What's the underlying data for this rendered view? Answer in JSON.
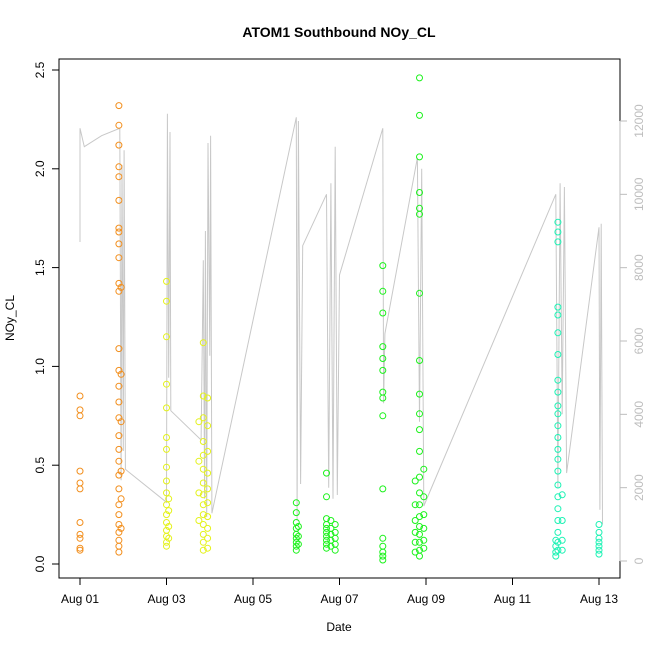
{
  "chart_data": {
    "type": "scatter",
    "title": "ATOM1 Southbound NOy_CL",
    "xlabel": "Date",
    "ylabel": "NOy_CL",
    "xlim": [
      "2016-08-01",
      "2016-08-13"
    ],
    "ylim": [
      0,
      2.5
    ],
    "y2lim": [
      0,
      12000
    ],
    "x_ticks": [
      "Aug 01",
      "Aug 03",
      "Aug 05",
      "Aug 07",
      "Aug 09",
      "Aug 11",
      "Aug 13"
    ],
    "y_ticks": [
      "0.0",
      "0.5",
      "1.0",
      "1.5",
      "2.0",
      "2.5"
    ],
    "y2_ticks": [
      "0",
      "2000",
      "4000",
      "6000",
      "8000",
      "10000",
      "12000"
    ],
    "grid": false,
    "series": [
      {
        "color": "#F28E1C",
        "marker": "open-circle",
        "points": [
          [
            0.0,
            0.85
          ],
          [
            0.0,
            0.78
          ],
          [
            0.0,
            0.75
          ],
          [
            0.0,
            0.47
          ],
          [
            0.0,
            0.41
          ],
          [
            0.0,
            0.38
          ],
          [
            0.0,
            0.21
          ],
          [
            0.0,
            0.15
          ],
          [
            0.0,
            0.13
          ],
          [
            0.0,
            0.08
          ],
          [
            0.0,
            0.07
          ],
          [
            0.9,
            2.32
          ],
          [
            0.9,
            2.22
          ],
          [
            0.9,
            2.12
          ],
          [
            0.9,
            2.01
          ],
          [
            0.9,
            1.96
          ],
          [
            0.9,
            1.84
          ],
          [
            0.9,
            1.7
          ],
          [
            0.9,
            1.68
          ],
          [
            0.9,
            1.62
          ],
          [
            0.9,
            1.55
          ],
          [
            0.9,
            1.42
          ],
          [
            0.9,
            1.38
          ],
          [
            0.9,
            1.09
          ],
          [
            0.9,
            0.98
          ],
          [
            0.9,
            0.9
          ],
          [
            0.9,
            0.82
          ],
          [
            0.9,
            0.74
          ],
          [
            0.9,
            0.65
          ],
          [
            0.9,
            0.58
          ],
          [
            0.9,
            0.52
          ],
          [
            0.9,
            0.45
          ],
          [
            0.9,
            0.38
          ],
          [
            0.9,
            0.3
          ],
          [
            0.9,
            0.25
          ],
          [
            0.9,
            0.2
          ],
          [
            0.9,
            0.16
          ],
          [
            0.9,
            0.12
          ],
          [
            0.9,
            0.09
          ],
          [
            0.9,
            0.06
          ],
          [
            0.95,
            1.4
          ],
          [
            0.95,
            0.96
          ],
          [
            0.95,
            0.72
          ],
          [
            0.95,
            0.47
          ],
          [
            0.95,
            0.33
          ],
          [
            0.95,
            0.18
          ]
        ]
      },
      {
        "color": "#E4F21C",
        "marker": "open-circle",
        "points": [
          [
            2.0,
            1.43
          ],
          [
            2.0,
            1.33
          ],
          [
            2.0,
            1.15
          ],
          [
            2.0,
            0.91
          ],
          [
            2.0,
            0.79
          ],
          [
            2.0,
            0.64
          ],
          [
            2.0,
            0.58
          ],
          [
            2.0,
            0.49
          ],
          [
            2.0,
            0.42
          ],
          [
            2.0,
            0.36
          ],
          [
            2.0,
            0.3
          ],
          [
            2.0,
            0.25
          ],
          [
            2.0,
            0.21
          ],
          [
            2.0,
            0.17
          ],
          [
            2.0,
            0.14
          ],
          [
            2.0,
            0.11
          ],
          [
            2.0,
            0.09
          ],
          [
            2.05,
            0.33
          ],
          [
            2.05,
            0.27
          ],
          [
            2.05,
            0.19
          ],
          [
            2.05,
            0.13
          ],
          [
            2.85,
            1.12
          ],
          [
            2.85,
            0.85
          ],
          [
            2.85,
            0.74
          ],
          [
            2.85,
            0.62
          ],
          [
            2.85,
            0.55
          ],
          [
            2.85,
            0.48
          ],
          [
            2.85,
            0.41
          ],
          [
            2.85,
            0.35
          ],
          [
            2.85,
            0.3
          ],
          [
            2.85,
            0.25
          ],
          [
            2.85,
            0.2
          ],
          [
            2.85,
            0.15
          ],
          [
            2.85,
            0.11
          ],
          [
            2.85,
            0.07
          ],
          [
            2.95,
            0.84
          ],
          [
            2.95,
            0.7
          ],
          [
            2.95,
            0.57
          ],
          [
            2.95,
            0.46
          ],
          [
            2.95,
            0.38
          ],
          [
            2.95,
            0.31
          ],
          [
            2.95,
            0.24
          ],
          [
            2.95,
            0.18
          ],
          [
            2.95,
            0.13
          ],
          [
            2.95,
            0.08
          ],
          [
            2.75,
            0.72
          ],
          [
            2.75,
            0.52
          ],
          [
            2.75,
            0.36
          ],
          [
            2.75,
            0.22
          ]
        ]
      },
      {
        "color": "#1CF21C",
        "marker": "open-circle",
        "points": [
          [
            5.0,
            0.31
          ],
          [
            5.0,
            0.26
          ],
          [
            5.0,
            0.21
          ],
          [
            5.0,
            0.18
          ],
          [
            5.0,
            0.15
          ],
          [
            5.0,
            0.13
          ],
          [
            5.0,
            0.11
          ],
          [
            5.0,
            0.09
          ],
          [
            5.0,
            0.07
          ],
          [
            5.05,
            0.19
          ],
          [
            5.05,
            0.14
          ],
          [
            5.05,
            0.1
          ],
          [
            5.7,
            0.46
          ],
          [
            5.7,
            0.34
          ],
          [
            5.7,
            0.23
          ],
          [
            5.7,
            0.2
          ],
          [
            5.7,
            0.18
          ],
          [
            5.7,
            0.16
          ],
          [
            5.7,
            0.14
          ],
          [
            5.7,
            0.12
          ],
          [
            5.7,
            0.1
          ],
          [
            5.7,
            0.08
          ],
          [
            5.8,
            0.22
          ],
          [
            5.8,
            0.18
          ],
          [
            5.8,
            0.15
          ],
          [
            5.8,
            0.12
          ],
          [
            5.8,
            0.09
          ],
          [
            5.9,
            0.2
          ],
          [
            5.9,
            0.16
          ],
          [
            5.9,
            0.13
          ],
          [
            5.9,
            0.1
          ],
          [
            5.9,
            0.07
          ],
          [
            7.0,
            1.51
          ],
          [
            7.0,
            1.38
          ],
          [
            7.0,
            1.27
          ],
          [
            7.0,
            1.1
          ],
          [
            7.0,
            1.04
          ],
          [
            7.0,
            0.98
          ],
          [
            7.0,
            0.87
          ],
          [
            7.0,
            0.84
          ],
          [
            7.0,
            0.75
          ],
          [
            7.0,
            0.38
          ],
          [
            7.0,
            0.13
          ],
          [
            7.0,
            0.09
          ],
          [
            7.0,
            0.06
          ],
          [
            7.0,
            0.04
          ],
          [
            7.0,
            0.02
          ],
          [
            7.85,
            2.46
          ],
          [
            7.85,
            2.27
          ],
          [
            7.85,
            2.06
          ],
          [
            7.85,
            1.88
          ],
          [
            7.85,
            1.8
          ],
          [
            7.85,
            1.77
          ],
          [
            7.85,
            1.37
          ],
          [
            7.85,
            1.03
          ],
          [
            7.85,
            0.86
          ],
          [
            7.85,
            0.76
          ],
          [
            7.85,
            0.68
          ],
          [
            7.85,
            0.57
          ],
          [
            7.85,
            0.44
          ],
          [
            7.85,
            0.36
          ],
          [
            7.85,
            0.3
          ],
          [
            7.85,
            0.24
          ],
          [
            7.85,
            0.19
          ],
          [
            7.85,
            0.15
          ],
          [
            7.85,
            0.11
          ],
          [
            7.85,
            0.07
          ],
          [
            7.85,
            0.04
          ],
          [
            7.75,
            0.42
          ],
          [
            7.75,
            0.3
          ],
          [
            7.75,
            0.22
          ],
          [
            7.75,
            0.16
          ],
          [
            7.75,
            0.11
          ],
          [
            7.75,
            0.06
          ],
          [
            7.95,
            0.48
          ],
          [
            7.95,
            0.34
          ],
          [
            7.95,
            0.25
          ],
          [
            7.95,
            0.18
          ],
          [
            7.95,
            0.12
          ],
          [
            7.95,
            0.08
          ]
        ]
      },
      {
        "color": "#1CF2B4",
        "marker": "open-circle",
        "points": [
          [
            11.05,
            1.73
          ],
          [
            11.05,
            1.68
          ],
          [
            11.05,
            1.63
          ],
          [
            11.05,
            1.3
          ],
          [
            11.05,
            1.26
          ],
          [
            11.05,
            1.17
          ],
          [
            11.05,
            1.06
          ],
          [
            11.05,
            0.93
          ],
          [
            11.05,
            0.87
          ],
          [
            11.05,
            0.8
          ],
          [
            11.05,
            0.76
          ],
          [
            11.05,
            0.7
          ],
          [
            11.05,
            0.64
          ],
          [
            11.05,
            0.58
          ],
          [
            11.05,
            0.53
          ],
          [
            11.05,
            0.47
          ],
          [
            11.05,
            0.4
          ],
          [
            11.05,
            0.34
          ],
          [
            11.05,
            0.28
          ],
          [
            11.05,
            0.22
          ],
          [
            11.05,
            0.16
          ],
          [
            11.05,
            0.11
          ],
          [
            11.05,
            0.07
          ],
          [
            11.0,
            0.12
          ],
          [
            11.0,
            0.09
          ],
          [
            11.0,
            0.06
          ],
          [
            11.0,
            0.04
          ],
          [
            11.15,
            0.35
          ],
          [
            11.15,
            0.22
          ],
          [
            11.15,
            0.12
          ],
          [
            11.15,
            0.07
          ],
          [
            12.0,
            0.2
          ],
          [
            12.0,
            0.16
          ],
          [
            12.0,
            0.13
          ],
          [
            12.0,
            0.11
          ],
          [
            12.0,
            0.09
          ],
          [
            12.0,
            0.07
          ],
          [
            12.0,
            0.05
          ]
        ]
      }
    ],
    "secondary_series": {
      "color": "#c8c8c8",
      "style": "line",
      "points": [
        [
          0.0,
          8700
        ],
        [
          0.0,
          11800
        ],
        [
          0.1,
          11300
        ],
        [
          0.5,
          11600
        ],
        [
          0.92,
          11800
        ],
        [
          0.95,
          2200
        ],
        [
          0.97,
          10800
        ],
        [
          1.0,
          3000
        ],
        [
          1.02,
          11200
        ],
        [
          1.05,
          2500
        ],
        [
          2.0,
          1600
        ],
        [
          2.02,
          12200
        ],
        [
          2.05,
          5000
        ],
        [
          2.08,
          11700
        ],
        [
          2.1,
          4100
        ],
        [
          2.8,
          3300
        ],
        [
          2.85,
          8200
        ],
        [
          2.88,
          1700
        ],
        [
          2.9,
          9000
        ],
        [
          2.93,
          1200
        ],
        [
          2.96,
          11400
        ],
        [
          3.0,
          5600
        ],
        [
          3.02,
          11600
        ],
        [
          3.05,
          1300
        ],
        [
          5.0,
          12100
        ],
        [
          5.02,
          1100
        ],
        [
          5.05,
          12000
        ],
        [
          5.1,
          2100
        ],
        [
          5.15,
          8600
        ],
        [
          5.7,
          10000
        ],
        [
          5.75,
          2000
        ],
        [
          5.8,
          10300
        ],
        [
          5.85,
          1700
        ],
        [
          5.9,
          11300
        ],
        [
          5.95,
          1800
        ],
        [
          6.0,
          7800
        ],
        [
          7.0,
          11800
        ],
        [
          7.02,
          4300
        ],
        [
          7.05,
          6200
        ],
        [
          7.8,
          11000
        ],
        [
          7.85,
          3800
        ],
        [
          7.9,
          10700
        ],
        [
          7.95,
          1500
        ],
        [
          11.0,
          10000
        ],
        [
          11.05,
          2000
        ],
        [
          11.1,
          10300
        ],
        [
          11.15,
          4000
        ],
        [
          11.2,
          10200
        ],
        [
          11.25,
          2400
        ],
        [
          12.0,
          9100
        ],
        [
          12.02,
          1400
        ],
        [
          12.05,
          9200
        ],
        [
          12.08,
          1000
        ]
      ]
    }
  }
}
